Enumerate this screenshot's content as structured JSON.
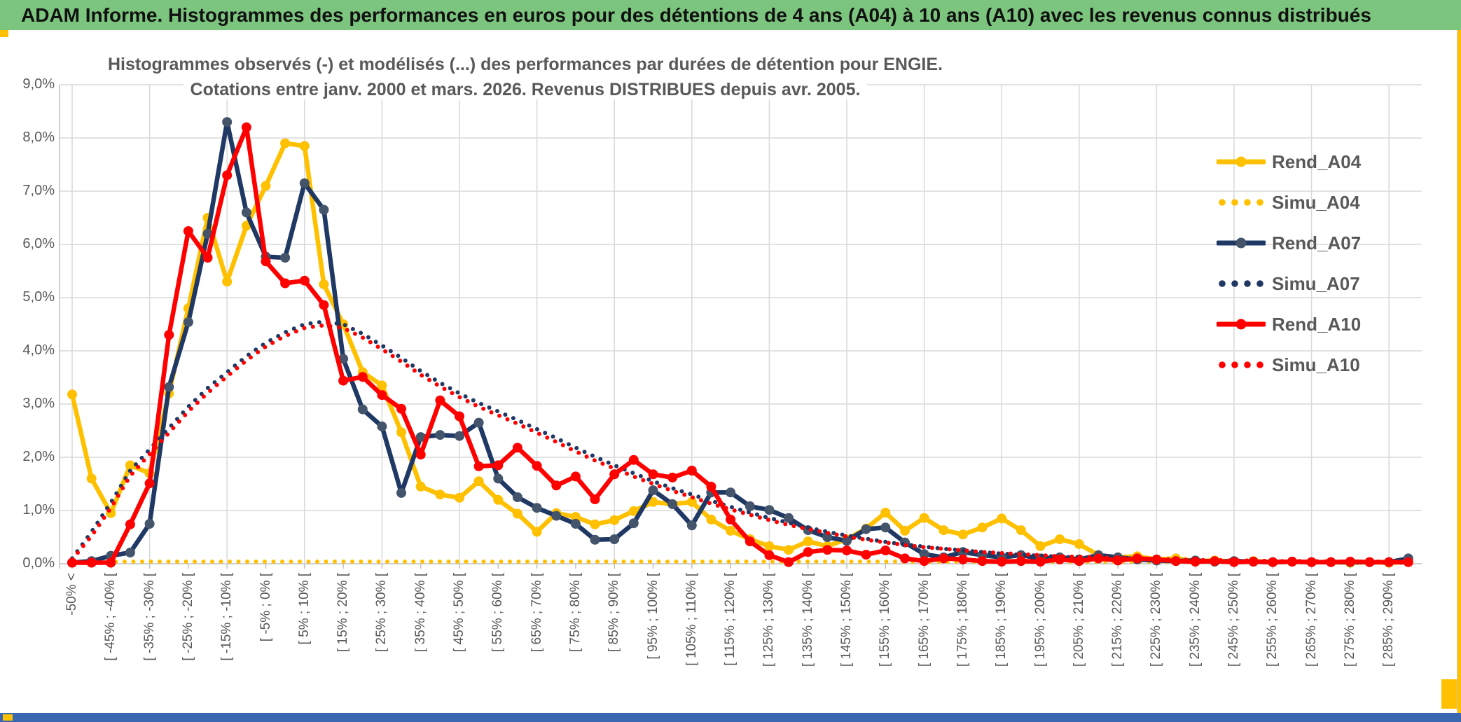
{
  "header": {
    "title": "ADAM Informe. Histogrammes des performances en euros pour des détentions de 4 ans (A04) à 10 ans (A10) avec les revenus connus distribués"
  },
  "chart": {
    "title_line1": "Histogrammes observés (-) et modélisés (...) des performances par durées de détention pour ENGIE.",
    "title_line2": "Cotations entre janv. 2000 et mars. 2026. Revenus DISTRIBUES depuis avr. 2005.",
    "y_ticks": [
      "0,0%",
      "1,0%",
      "2,0%",
      "3,0%",
      "4,0%",
      "5,0%",
      "6,0%",
      "7,0%",
      "8,0%",
      "9,0%"
    ]
  },
  "colors": {
    "gold": "#FFC000",
    "navy": "#1F3864",
    "navy_marker": "#44546A",
    "red": "#FF0000",
    "header_green": "#7CC57E",
    "bottom_blue": "#3A67B2",
    "gridline": "#D9D9D9",
    "axis_line": "#BFBFBF",
    "text_gray": "#595959"
  },
  "chart_data": {
    "type": "line",
    "title": "Histogrammes observés (-) et modélisés (...) des performances par durées de détention pour ENGIE. Cotations entre janv. 2000 et mars. 2026. Revenus DISTRIBUES depuis avr. 2005.",
    "xlabel": "",
    "ylabel": "",
    "ylim": [
      0,
      9
    ],
    "y_unit": "percent",
    "grid": true,
    "legend_position": "right",
    "categories": [
      "-50% <",
      "",
      "[ -45% ; -40% [",
      "",
      "[ -35% ; -30% [",
      "",
      "[ -25% ; -20% [",
      "",
      "[ -15% ; -10% [",
      "",
      "[ -5% ; 0% [",
      "",
      "[ 5% ; 10% [",
      "",
      "[ 15% ; 20% [",
      "",
      "[ 25% ; 30% [",
      "",
      "[ 35% ; 40% [",
      "",
      "[ 45% ; 50% [",
      "",
      "[ 55% ; 60% [",
      "",
      "[ 65% ; 70% [",
      "",
      "[ 75% ; 80% [",
      "",
      "[ 85% ; 90% [",
      "",
      "[ 95% ; 100% [",
      "",
      "[ 105% ; 110% [",
      "",
      "[ 115% ; 120% [",
      "",
      "[ 125% ; 130% [",
      "",
      "[ 135% ; 140% [",
      "",
      "[ 145% ; 150% [",
      "",
      "[ 155% ; 160% [",
      "",
      "[ 165% ; 170% [",
      "",
      "[ 175% ; 180% [",
      "",
      "[ 185% ; 190% [",
      "",
      "[ 195% ; 200% [",
      "",
      "[ 205% ; 210% [",
      "",
      "[ 215% ; 220% [",
      "",
      "[ 225% ; 230% [",
      "",
      "[ 235% ; 240% [",
      "",
      "[ 245% ; 250% [",
      "",
      "[ 255% ; 260% [",
      "",
      "[ 265% ; 270% [",
      "",
      "[ 275% ; 280% [",
      "",
      "[ 285% ; 290% [",
      ""
    ],
    "series": [
      {
        "name": "Rend_A04",
        "style": "solid",
        "color": "#FFC000",
        "marker": "#FFC000",
        "values": [
          3.18,
          1.6,
          0.95,
          1.85,
          1.7,
          3.2,
          4.8,
          6.5,
          5.3,
          6.35,
          7.1,
          7.9,
          7.85,
          5.25,
          4.5,
          3.6,
          3.35,
          2.47,
          1.45,
          1.3,
          1.24,
          1.55,
          1.2,
          0.94,
          0.6,
          0.95,
          0.88,
          0.74,
          0.82,
          0.99,
          1.16,
          1.12,
          1.16,
          0.83,
          0.62,
          0.46,
          0.33,
          0.26,
          0.42,
          0.33,
          0.46,
          0.66,
          0.96,
          0.62,
          0.86,
          0.63,
          0.55,
          0.68,
          0.85,
          0.63,
          0.33,
          0.46,
          0.37,
          0.16,
          0.12,
          0.14,
          0.08,
          0.1,
          0.05,
          0.06,
          0.04,
          0.05,
          0.03,
          0.04,
          0.03,
          0.03,
          0.02,
          0.03,
          0.02,
          0.03
        ]
      },
      {
        "name": "Simu_A04",
        "style": "dotted",
        "color": "#FFC000",
        "values": [
          0.04,
          0.04,
          0.04,
          0.04,
          0.04,
          0.04,
          0.04,
          0.04,
          0.04,
          0.04,
          0.04,
          0.04,
          0.04,
          0.04,
          0.04,
          0.04,
          0.04,
          0.04,
          0.04,
          0.04,
          0.04,
          0.04,
          0.04,
          0.04,
          0.04,
          0.04,
          0.04,
          0.04,
          0.04,
          0.04,
          0.04,
          0.04,
          0.04,
          0.04,
          0.04,
          0.04,
          0.04,
          0.04,
          0.04,
          0.04,
          0.04,
          0.04,
          0.04,
          0.04,
          0.04,
          0.04,
          0.04,
          0.04,
          0.04,
          0.04,
          0.04,
          0.04,
          0.04,
          0.04,
          0.04,
          0.04,
          0.04,
          0.04,
          0.04,
          0.04,
          0.04,
          0.04,
          0.04,
          0.04,
          0.04,
          0.04,
          0.04,
          0.04,
          0.04,
          0.04
        ]
      },
      {
        "name": "Rend_A07",
        "style": "solid",
        "color": "#1F3864",
        "marker": "#44546A",
        "values": [
          0.02,
          0.05,
          0.15,
          0.21,
          0.75,
          3.32,
          4.54,
          6.2,
          8.3,
          6.6,
          5.77,
          5.75,
          7.15,
          6.65,
          3.85,
          2.9,
          2.58,
          1.33,
          2.38,
          2.42,
          2.4,
          2.65,
          1.6,
          1.25,
          1.05,
          0.9,
          0.75,
          0.45,
          0.46,
          0.76,
          1.38,
          1.12,
          0.72,
          1.34,
          1.34,
          1.08,
          1.01,
          0.86,
          0.63,
          0.5,
          0.43,
          0.65,
          0.68,
          0.4,
          0.18,
          0.12,
          0.22,
          0.16,
          0.12,
          0.16,
          0.1,
          0.12,
          0.08,
          0.16,
          0.12,
          0.08,
          0.06,
          0.05,
          0.06,
          0.04,
          0.05,
          0.04,
          0.03,
          0.04,
          0.03,
          0.03,
          0.03,
          0.03,
          0.03,
          0.1
        ]
      },
      {
        "name": "Simu_A07",
        "style": "dotted",
        "color": "#1F3864",
        "values": [
          0.1,
          0.6,
          1.15,
          1.75,
          2.15,
          2.55,
          2.95,
          3.3,
          3.6,
          3.9,
          4.15,
          4.35,
          4.5,
          4.55,
          4.5,
          4.32,
          4.1,
          3.87,
          3.62,
          3.4,
          3.2,
          3.02,
          2.86,
          2.7,
          2.53,
          2.36,
          2.18,
          2.01,
          1.85,
          1.7,
          1.55,
          1.42,
          1.3,
          1.18,
          1.07,
          0.96,
          0.86,
          0.77,
          0.68,
          0.6,
          0.53,
          0.47,
          0.41,
          0.36,
          0.32,
          0.28,
          0.25,
          0.22,
          0.19,
          0.17,
          0.15,
          0.13,
          0.12,
          0.1,
          0.09,
          0.08,
          0.07,
          0.06,
          0.06,
          0.05,
          0.05,
          0.04,
          0.04,
          0.03,
          0.03,
          0.03,
          0.02,
          0.02,
          0.02,
          0.02
        ]
      },
      {
        "name": "Rend_A10",
        "style": "solid",
        "color": "#FF0000",
        "marker": "#FF0000",
        "values": [
          0.02,
          0.02,
          0.02,
          0.74,
          1.51,
          4.3,
          6.25,
          5.75,
          7.3,
          8.2,
          5.68,
          5.27,
          5.32,
          4.86,
          3.44,
          3.51,
          3.17,
          2.91,
          2.05,
          3.07,
          2.77,
          1.83,
          1.85,
          2.18,
          1.84,
          1.47,
          1.64,
          1.21,
          1.68,
          1.95,
          1.68,
          1.62,
          1.75,
          1.45,
          0.83,
          0.42,
          0.16,
          0.03,
          0.22,
          0.26,
          0.25,
          0.17,
          0.25,
          0.1,
          0.05,
          0.1,
          0.08,
          0.05,
          0.04,
          0.05,
          0.04,
          0.08,
          0.05,
          0.1,
          0.06,
          0.1,
          0.08,
          0.05,
          0.04,
          0.05,
          0.03,
          0.04,
          0.03,
          0.04,
          0.03,
          0.03,
          0.04,
          0.03,
          0.03,
          0.03
        ]
      },
      {
        "name": "Simu_A10",
        "style": "dotted",
        "color": "#FF0000",
        "values": [
          0.08,
          0.52,
          1.05,
          1.65,
          2.06,
          2.46,
          2.86,
          3.21,
          3.52,
          3.82,
          4.08,
          4.28,
          4.43,
          4.48,
          4.43,
          4.25,
          4.03,
          3.8,
          3.55,
          3.33,
          3.13,
          2.95,
          2.79,
          2.63,
          2.46,
          2.29,
          2.11,
          1.94,
          1.79,
          1.64,
          1.5,
          1.37,
          1.25,
          1.13,
          1.02,
          0.92,
          0.82,
          0.73,
          0.65,
          0.58,
          0.51,
          0.45,
          0.4,
          0.35,
          0.31,
          0.28,
          0.25,
          0.22,
          0.2,
          0.18,
          0.16,
          0.14,
          0.13,
          0.12,
          0.11,
          0.1,
          0.09,
          0.08,
          0.07,
          0.07,
          0.06,
          0.06,
          0.05,
          0.05,
          0.05,
          0.04,
          0.04,
          0.04,
          0.04,
          0.04
        ]
      }
    ]
  }
}
